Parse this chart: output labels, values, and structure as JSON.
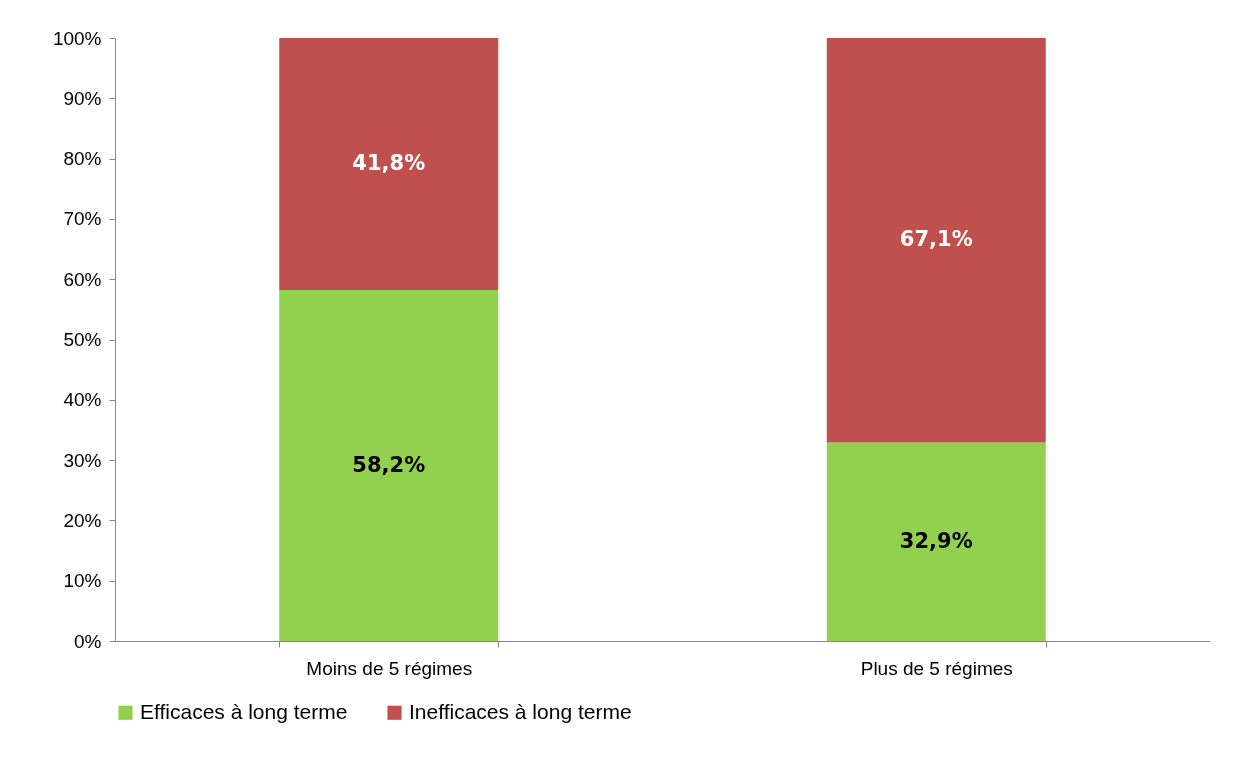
{
  "chart_data": {
    "type": "bar",
    "stacked": true,
    "categories": [
      "Moins de 5 régimes",
      "Plus de 5 régimes"
    ],
    "series": [
      {
        "name": "Efficaces à long terme",
        "color": "#92d050",
        "values": [
          58.2,
          32.9
        ],
        "value_labels": [
          "58,2%",
          "32,9%"
        ]
      },
      {
        "name": "Inefficaces à long terme",
        "color": "#c0504d",
        "values": [
          41.8,
          67.1
        ],
        "value_labels": [
          "41,8%",
          "67,1%"
        ]
      }
    ],
    "ylim": [
      0,
      100
    ],
    "yticks": [
      {
        "value": 0,
        "label": "0%"
      },
      {
        "value": 10,
        "label": "10%"
      },
      {
        "value": 20,
        "label": "20%"
      },
      {
        "value": 30,
        "label": "30%"
      },
      {
        "value": 40,
        "label": "40%"
      },
      {
        "value": 50,
        "label": "50%"
      },
      {
        "value": 60,
        "label": "60%"
      },
      {
        "value": 70,
        "label": "70%"
      },
      {
        "value": 80,
        "label": "80%"
      },
      {
        "value": 90,
        "label": "90%"
      },
      {
        "value": 100,
        "label": "100%"
      }
    ],
    "grid": false,
    "legend": "bottom"
  }
}
